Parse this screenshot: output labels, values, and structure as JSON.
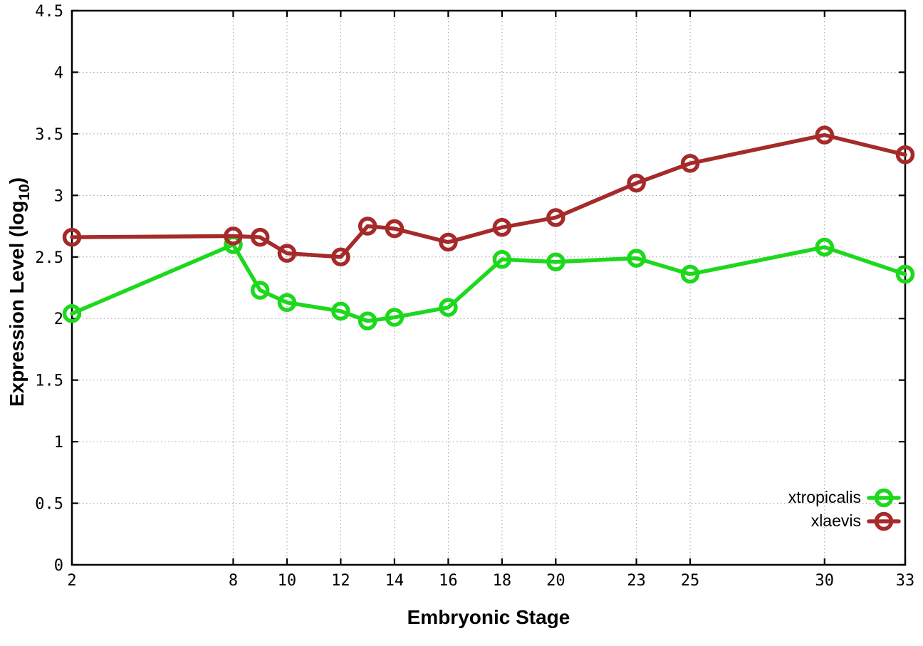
{
  "chart_data": {
    "type": "line",
    "title": "",
    "xlabel": "Embryonic Stage",
    "ylabel": {
      "main": "Expression Level (log",
      "sub": "10",
      "end": ")"
    },
    "x": [
      2,
      8,
      9,
      10,
      12,
      13,
      14,
      16,
      18,
      20,
      23,
      25,
      30,
      33
    ],
    "series": [
      {
        "name": "xtropicalis",
        "color": "#1dd81d",
        "values": [
          2.04,
          2.6,
          2.23,
          2.13,
          2.06,
          1.98,
          2.01,
          2.09,
          2.48,
          2.46,
          2.49,
          2.36,
          2.58,
          2.36
        ]
      },
      {
        "name": "xlaevis",
        "color": "#a52a2a",
        "values": [
          2.66,
          2.67,
          2.66,
          2.53,
          2.5,
          2.75,
          2.73,
          2.62,
          2.74,
          2.82,
          3.1,
          3.26,
          3.49,
          3.33
        ]
      }
    ],
    "xlim": [
      2,
      33
    ],
    "ylim": [
      0,
      4.5
    ],
    "xticks": [
      2,
      8,
      10,
      12,
      14,
      16,
      18,
      20,
      23,
      25,
      30,
      33
    ],
    "xtick_labels": [
      "2",
      "8",
      "10",
      "12",
      "14",
      "16",
      "18",
      "20",
      "23",
      "25",
      "30",
      "33"
    ],
    "yticks": [
      0,
      0.5,
      1,
      1.5,
      2,
      2.5,
      3,
      3.5,
      4,
      4.5
    ],
    "ytick_labels": [
      "0",
      "0.5",
      "1",
      "1.5",
      "2",
      "2.5",
      "3",
      "3.5",
      "4",
      "4.5"
    ],
    "grid": true,
    "legend_position": "inside-bottom-right",
    "colors": {
      "background": "#ffffff",
      "border": "#000000",
      "grid": "#9c9c9c",
      "text": "#000000"
    }
  }
}
